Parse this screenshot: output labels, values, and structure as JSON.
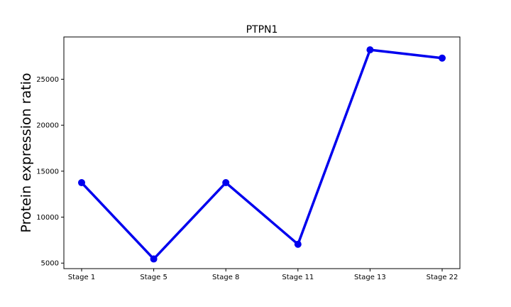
{
  "chart_data": {
    "type": "line",
    "title": "PTPN1",
    "xlabel": "",
    "ylabel": "Protein expression ratio",
    "categories": [
      "Stage 1",
      "Stage 5",
      "Stage 8",
      "Stage 11",
      "Stage 13",
      "Stage 22"
    ],
    "series": [
      {
        "values": [
          13750,
          5450,
          13750,
          7050,
          28200,
          27300
        ],
        "color": "#0000ee"
      }
    ],
    "yticks": [
      5000,
      10000,
      15000,
      20000,
      25000
    ],
    "ylim": [
      4400,
      29600
    ],
    "grid": false,
    "legend": "none"
  }
}
